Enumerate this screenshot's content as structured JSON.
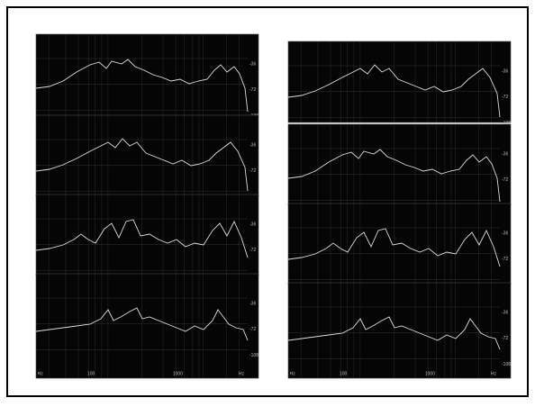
{
  "y_axis_labels": [
    "-36",
    "-72",
    "-108"
  ],
  "x_axis_labels": [
    "Hz",
    "100",
    "1000",
    "Hz"
  ]
}
